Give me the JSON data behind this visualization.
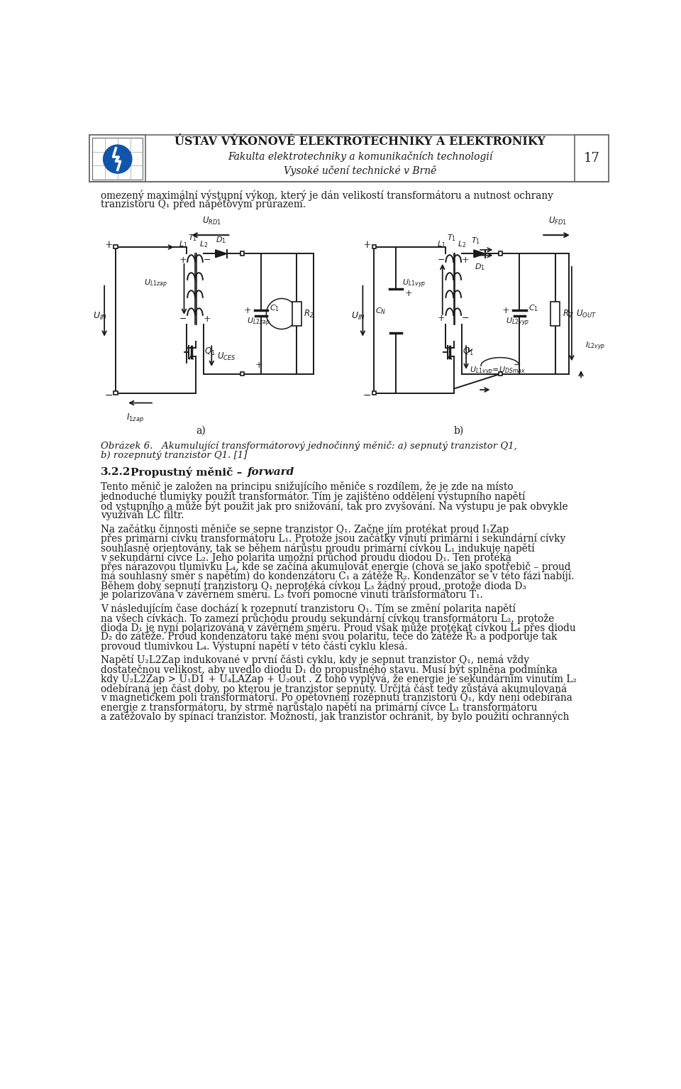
{
  "page_width": 9.6,
  "page_height": 15.34,
  "dpi": 100,
  "bg_color": "#ffffff",
  "text_color": "#1a1a1a",
  "header": {
    "line1": "ÚSTAV VÝKONOVÉ ELEKTROTECHNIKY A ELEKTRONIKY",
    "line2": "Fakulta elektrotechniky a komunikačních technologií",
    "line3": "Vysoké učení technické v Brně",
    "page_num": "17"
  },
  "intro_line1": "omezený maximální výstupní výkon, který je dán velikostí transformátoru a nutnost ochrany",
  "intro_line2": "tranzistoru Q₁ před napěťovým průrazem.",
  "fig_cap1": "Obrázek 6.   Akumulující transformátorový jednočinný měnič: a) sepnutý tranzistor Q1,",
  "fig_cap2": "b) rozepnutý tranzistor Q1. [1]",
  "sec_num": "3.2.2",
  "sec_title1": "Propustný měnič – ",
  "sec_title2": "forward",
  "para1_lines": [
    "Tento měnič je založen na principu snižujícího měniče s rozdílem, že je zde na místo",
    "jednoduché tlumivky použit transformátor. Tím je zajištěno oddělení výstupního napětí",
    "od vstupního a může být použit jak pro snižování, tak pro zvyšování. Na výstupu je pak obvykle",
    "využíván LC filtr."
  ],
  "para2_lines": [
    "Na začátku činnosti měniče se sepne tranzistor Q₁. Začne jím protékat proud I₁Zap",
    "přes primární cívku transformátoru L₁. Protože jsou začátky vinutí primární i sekundární cívky",
    "souhlasně orientovány, tak se během nárůstu proudu primární cívkou L₁ indukuje napětí",
    "v sekundární cívce L₂. Jeho polarita umožní průchod proudu diodou D₁. Ten protéká",
    "přes nárazovou tlumivku L₄, kde se začíná akumulovat energie (chová se jako spotřebič – proud",
    "má souhlasný směr s napětím) do kondenzátoru C₁ a zátěže R₂. Kondenzátor se v této fázi nabíjí.",
    "Během doby sepnutí tranzistoru Q₁ neprotéká cívkou L₃ žádný proud, protože dioda D₃",
    "je polarizována v závěrném směru. L₃ tvoří pomocné vinutí transformátoru T₁."
  ],
  "para3_lines": [
    "V následujícím čase dochází k rozepnutí tranzistoru Q₁. Tím se změní polarita napětí",
    "na všech cívkách. To zamezí průchodu proudu sekundární cívkou transformátoru L₂, protože",
    "dioda D₁ je nyní polarizována v závěrném směru. Proud však může protékat cívkou L₄ přes diodu",
    "D₂ do zátěže. Proud kondenzátoru také mění svou polaritu, teče do zátěže R₂ a podporuje tak",
    "provoud tlumivkou L₄. Výstupní napětí v této části cyklu klesá."
  ],
  "para4_lines": [
    "Napětí U₂L2Zap indukované v první části cyklu, kdy je sepnut tranzistor Q₁, nemá vždy",
    "dostatečnou velikost, aby uvedlo diodu D₁ do propustného stavu. Musí být splněna podmínka",
    "kdy U₂L2Zap > U₁D1 + U₄LAZap + U₂out . Z toho vyplývá, že energie je sekundárním vinutím L₂",
    "odebíraná jen část doby, po kterou je tranzistor sepnutý. Určitá část tedy zůstává akumulovaná",
    "v magnetickém poli transformátoru. Po opětovném rozepnutí tranzistoru Q₁, kdy není odebírána",
    "energie z transformátoru, by strmě narůstalo napětí na primární cívce L₁ transformátoru",
    "a zatěžovalo by spínací tranzistor. Možností, jak tranzistor ochránit, by bylo použití ochranných"
  ]
}
